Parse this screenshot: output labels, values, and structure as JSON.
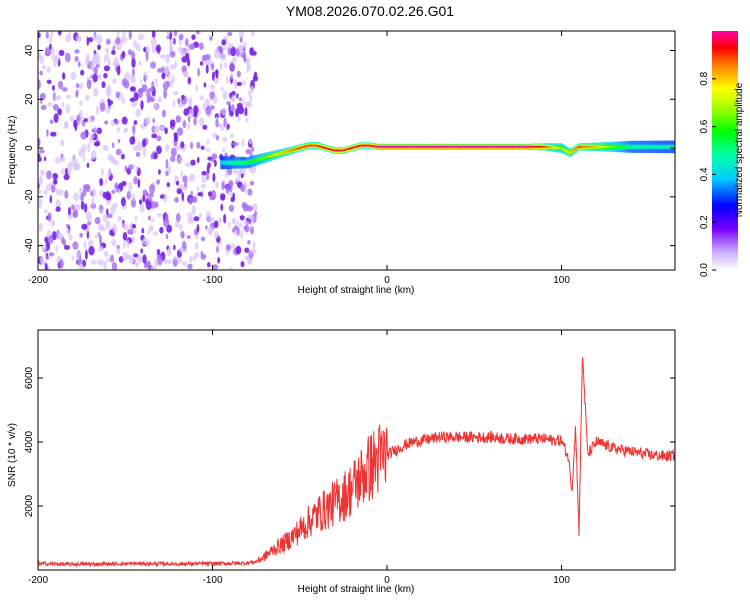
{
  "title": "YM08.2026.070.02.26.G01",
  "colors": {
    "snr_line": "#ee3333",
    "background": "#ffffff",
    "spectral_low": "#9a5cff",
    "spectral_mid": "#00ffcc",
    "spectral_high": "#ff0000"
  },
  "chart_data": [
    {
      "type": "heatmap",
      "name": "spectrogram",
      "xlabel": "Height of straight line (km)",
      "ylabel": "Frequency (Hz)",
      "xlim": [
        -200,
        165
      ],
      "ylim": [
        -50,
        48
      ],
      "x_ticks": [
        -200,
        -100,
        0,
        100
      ],
      "x_tick_labels": [
        "-200",
        "-100",
        "0",
        "100"
      ],
      "y_ticks": [
        40,
        20,
        0,
        -20,
        -40
      ],
      "y_tick_labels": [
        "40",
        "20",
        "0",
        "-20",
        "-40"
      ],
      "colorbar": {
        "label": "Normalized spectral amplitude",
        "range": [
          0,
          1
        ],
        "ticks": [
          0.0,
          0.2,
          0.4,
          0.6,
          0.8
        ],
        "tick_labels": [
          "0.0",
          "0.2",
          "0.4",
          "0.6",
          "0.8"
        ]
      },
      "noise_region_x": [
        -200,
        -75
      ],
      "signal_track": {
        "x": [
          -95,
          -88,
          -80,
          -75,
          -70,
          -65,
          -60,
          -55,
          -50,
          -45,
          -40,
          -35,
          -30,
          -25,
          -20,
          -15,
          -10,
          -5,
          0,
          20,
          50,
          80,
          90,
          100,
          105,
          110,
          120,
          140,
          165
        ],
        "freq_hz": [
          -6,
          -6,
          -6,
          -5,
          -4,
          -3,
          -2,
          -1,
          0,
          1,
          1,
          0,
          -1,
          -1,
          0,
          1,
          1,
          0.5,
          0.5,
          0.5,
          0.5,
          0.5,
          0.5,
          0,
          -2,
          0.5,
          0.5,
          0.5,
          0.5
        ],
        "amplitude": [
          0.4,
          0.5,
          0.55,
          0.6,
          0.65,
          0.75,
          0.8,
          0.85,
          0.9,
          0.9,
          0.9,
          0.95,
          0.95,
          0.95,
          0.95,
          0.95,
          0.95,
          1.0,
          1.0,
          1.0,
          1.0,
          1.0,
          0.9,
          0.7,
          0.8,
          0.9,
          0.8,
          0.5,
          0.45
        ]
      }
    },
    {
      "type": "line",
      "name": "snr",
      "xlabel": "Height of straight line (km)",
      "ylabel": "SNR (10 * v/v)",
      "xlim": [
        -200,
        165
      ],
      "ylim": [
        0,
        7500
      ],
      "x_ticks": [
        -200,
        -100,
        0,
        100
      ],
      "x_tick_labels": [
        "-200",
        "-100",
        "0",
        "100"
      ],
      "y_ticks": [
        2000,
        4000,
        6000
      ],
      "y_tick_labels": [
        "2000",
        "4000",
        "6000"
      ],
      "series": [
        {
          "name": "SNR",
          "x": [
            -200,
            -180,
            -160,
            -140,
            -120,
            -100,
            -90,
            -80,
            -75,
            -70,
            -65,
            -60,
            -55,
            -50,
            -45,
            -40,
            -35,
            -30,
            -25,
            -20,
            -15,
            -10,
            -5,
            0,
            5,
            10,
            15,
            20,
            25,
            30,
            40,
            50,
            60,
            70,
            80,
            90,
            95,
            100,
            104,
            106,
            108,
            110,
            112,
            115,
            120,
            130,
            140,
            150,
            160,
            165
          ],
          "values": [
            200,
            180,
            190,
            200,
            190,
            200,
            210,
            220,
            260,
            420,
            650,
            800,
            1000,
            1250,
            1500,
            1750,
            1900,
            2100,
            2300,
            2550,
            2900,
            3200,
            3450,
            3600,
            3750,
            3900,
            4000,
            4050,
            4100,
            4150,
            4150,
            4150,
            4150,
            4100,
            4100,
            4100,
            4050,
            4050,
            3500,
            2500,
            4500,
            1200,
            6800,
            3600,
            4000,
            3800,
            3700,
            3600,
            3550,
            3600
          ]
        }
      ]
    }
  ]
}
